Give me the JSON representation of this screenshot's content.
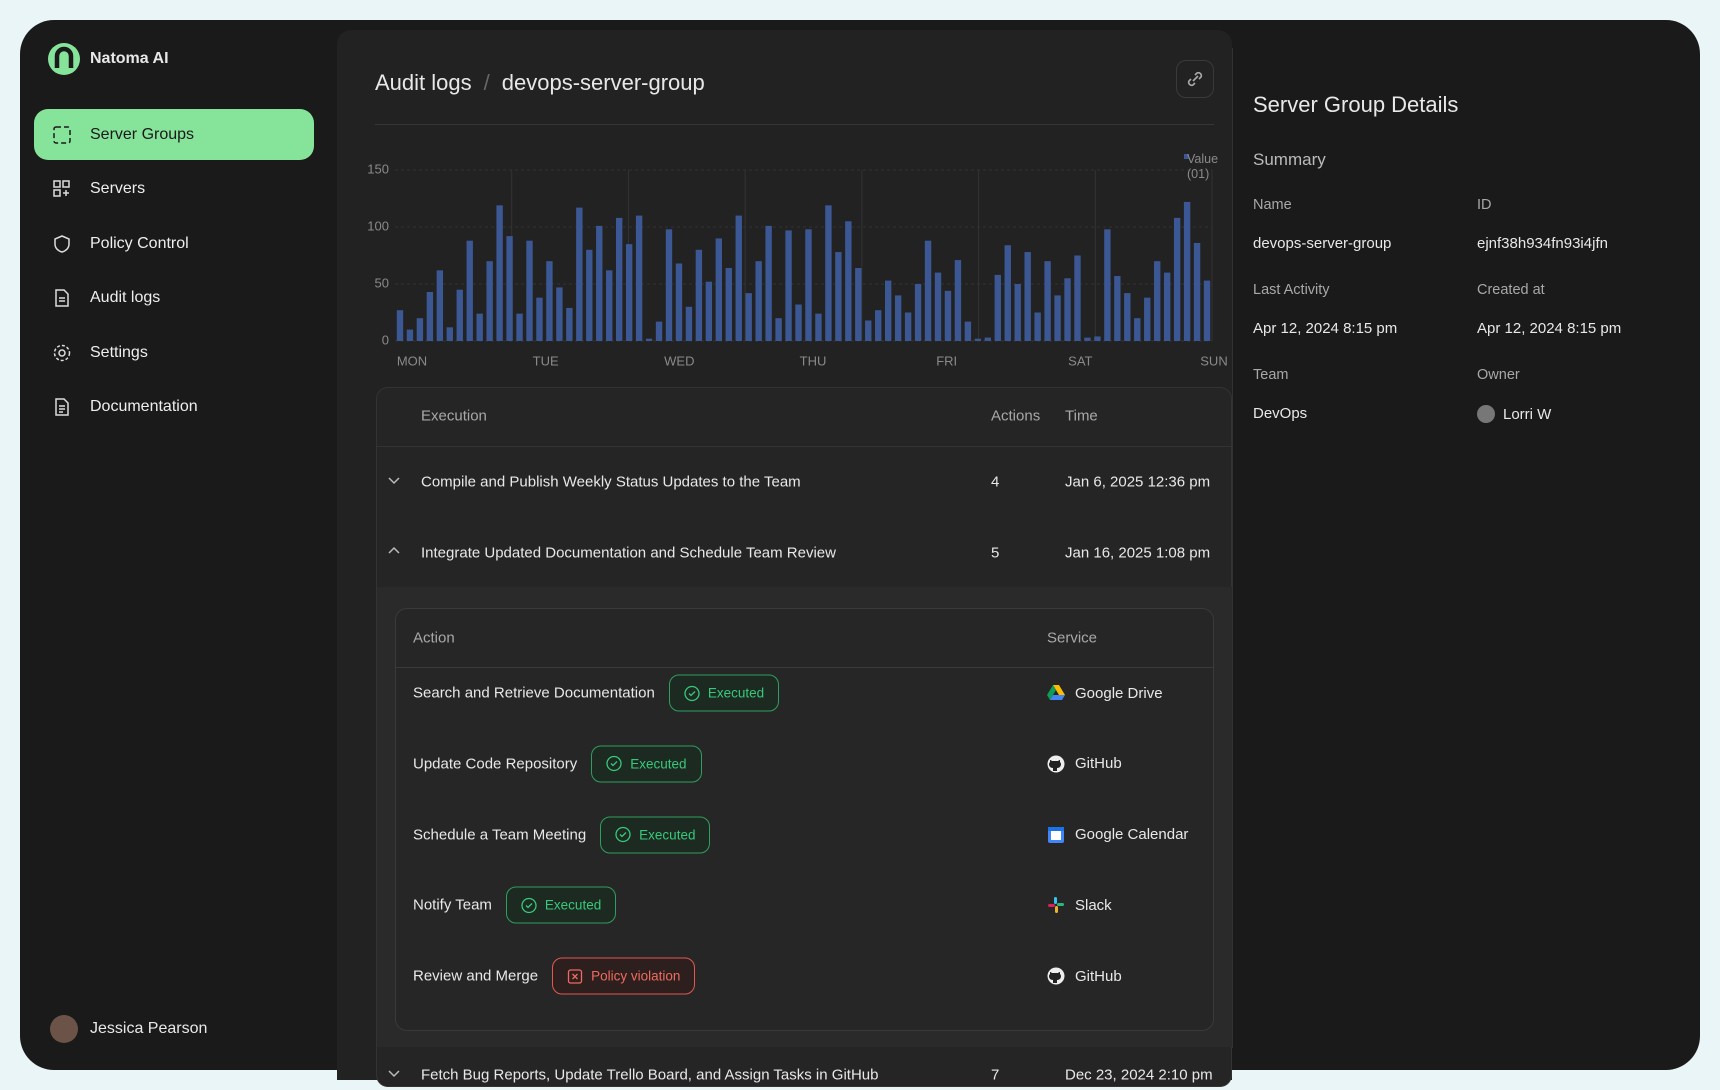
{
  "sidebar": {
    "brand": "Natoma AI",
    "nav": [
      "Server Groups",
      "Servers",
      "Policy Control",
      "Audit logs",
      "Settings",
      "Documentation"
    ],
    "user": "Jessica Pearson"
  },
  "header": {
    "section": "Audit logs",
    "separator": "/",
    "page": "devops-server-group"
  },
  "chart": {
    "type": "bar",
    "legend": "Value (01)",
    "color": "#3b5894",
    "ylim": [
      0,
      150
    ],
    "yticks": [
      0,
      50,
      100,
      150
    ],
    "x_labels": [
      "MON",
      "TUE",
      "WED",
      "THU",
      "FRI",
      "SAT",
      "SUN"
    ],
    "values": [
      27,
      10,
      20,
      43,
      62,
      12,
      45,
      88,
      24,
      70,
      119,
      92,
      24,
      88,
      38,
      70,
      47,
      29,
      117,
      80,
      101,
      62,
      108,
      85,
      110,
      2,
      17,
      98,
      68,
      30,
      80,
      52,
      90,
      64,
      110,
      42,
      70,
      101,
      20,
      97,
      32,
      98,
      24,
      119,
      78,
      105,
      64,
      18,
      27,
      53,
      40,
      25,
      50,
      88,
      60,
      44,
      71,
      17,
      2,
      3,
      58,
      84,
      50,
      78,
      25,
      70,
      40,
      55,
      75,
      3,
      4,
      98,
      57,
      42,
      20,
      38,
      70,
      60,
      108,
      122,
      86,
      53
    ]
  },
  "table": {
    "columns": [
      "Execution",
      "Actions",
      "Time"
    ],
    "rows": [
      {
        "name": "Compile and Publish Weekly Status Updates to the Team",
        "actions": "4",
        "time": "Jan 6, 2025 12:36 pm"
      },
      {
        "name": "Integrate Updated Documentation and Schedule Team Review",
        "actions": "5",
        "time": "Jan 16, 2025 1:08 pm"
      },
      {
        "name": "Fetch Bug Reports, Update Trello Board, and Assign Tasks in GitHub",
        "actions": "7",
        "time": "Dec 23, 2024 2:10 pm"
      }
    ]
  },
  "sub_table": {
    "columns": [
      "Action",
      "Service"
    ],
    "rows": [
      {
        "action": "Search and Retrieve Documentation",
        "status": "Executed",
        "service": "Google Drive"
      },
      {
        "action": "Update Code Repository",
        "status": "Executed",
        "service": "GitHub"
      },
      {
        "action": "Schedule a Team Meeting",
        "status": "Executed",
        "service": "Google Calendar"
      },
      {
        "action": "Notify Team",
        "status": "Executed",
        "service": "Slack"
      },
      {
        "action": "Review and Merge",
        "status": "Policy violation",
        "service": "GitHub"
      }
    ]
  },
  "details": {
    "title": "Server Group Details",
    "summary": "Summary",
    "fields": [
      {
        "label": "Name",
        "value": "devops-server-group"
      },
      {
        "label": "ID",
        "value": "ejnf38h934fn93i4jfn"
      },
      {
        "label": "Last Activity",
        "value": "Apr 12, 2024 8:15 pm"
      },
      {
        "label": "Created at",
        "value": "Apr 12, 2024 8:15 pm"
      },
      {
        "label": "Team",
        "value": "DevOps"
      },
      {
        "label": "Owner",
        "value": "Lorri W"
      }
    ]
  }
}
